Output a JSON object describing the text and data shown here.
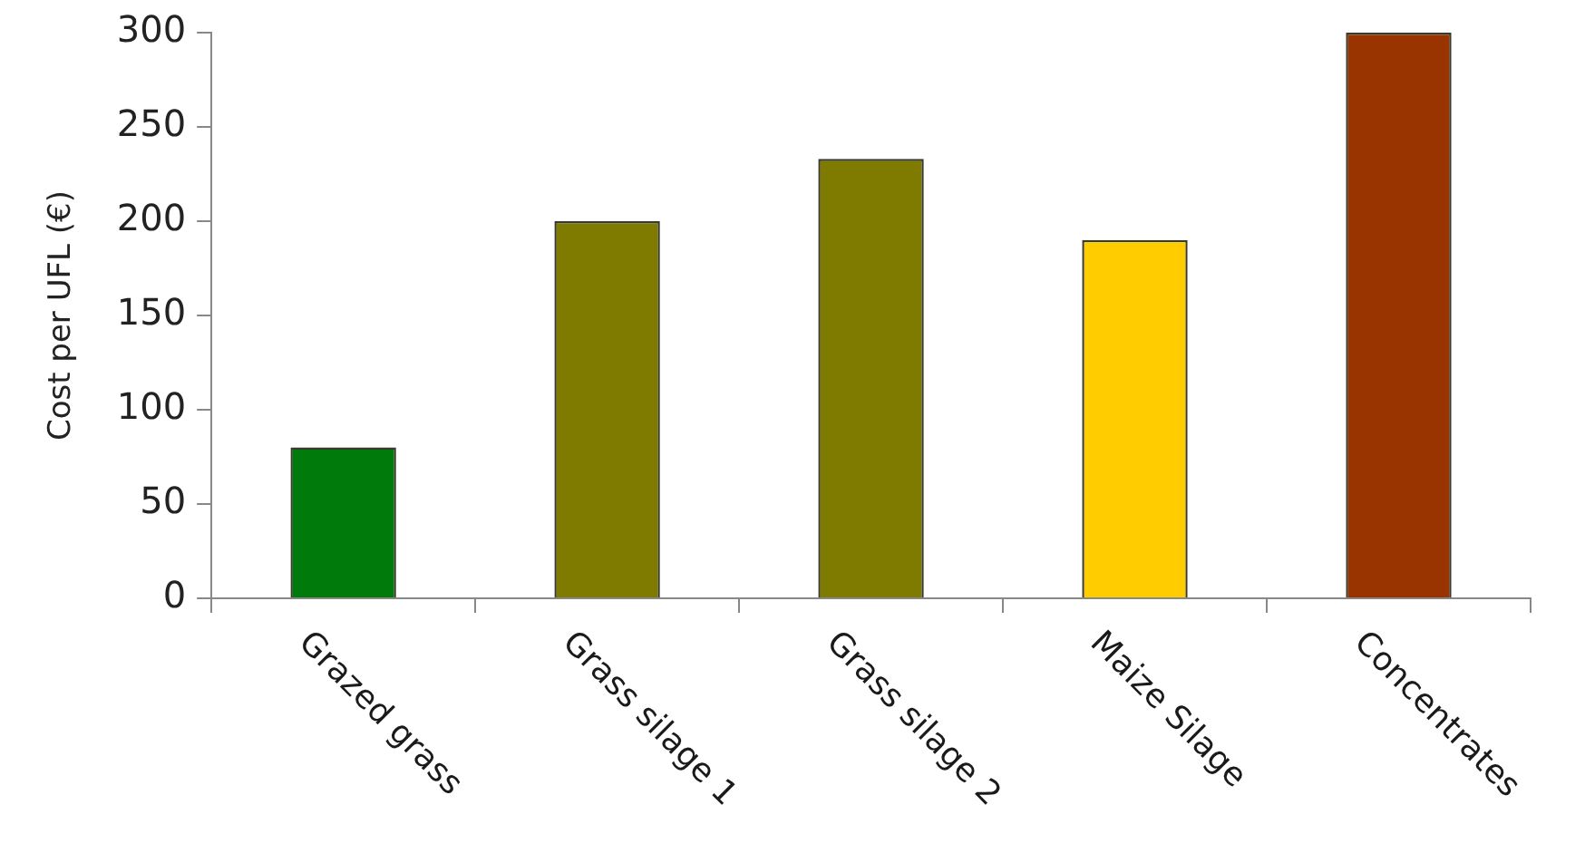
{
  "chart_data": {
    "type": "bar",
    "ylabel": "Cost per UFL (€)",
    "categories": [
      "Grazed grass",
      "Grass silage 1",
      "Grass silage 2",
      "Maize Silage",
      "Concentrates"
    ],
    "values": [
      80,
      200,
      233,
      190,
      300
    ],
    "colors": [
      "#007a0a",
      "#7f7a00",
      "#7f7a00",
      "#ffcc00",
      "#993300"
    ],
    "ylim": [
      0,
      300
    ],
    "yticks": [
      0,
      50,
      100,
      150,
      200,
      250,
      300
    ],
    "grid": false,
    "legend": false
  }
}
